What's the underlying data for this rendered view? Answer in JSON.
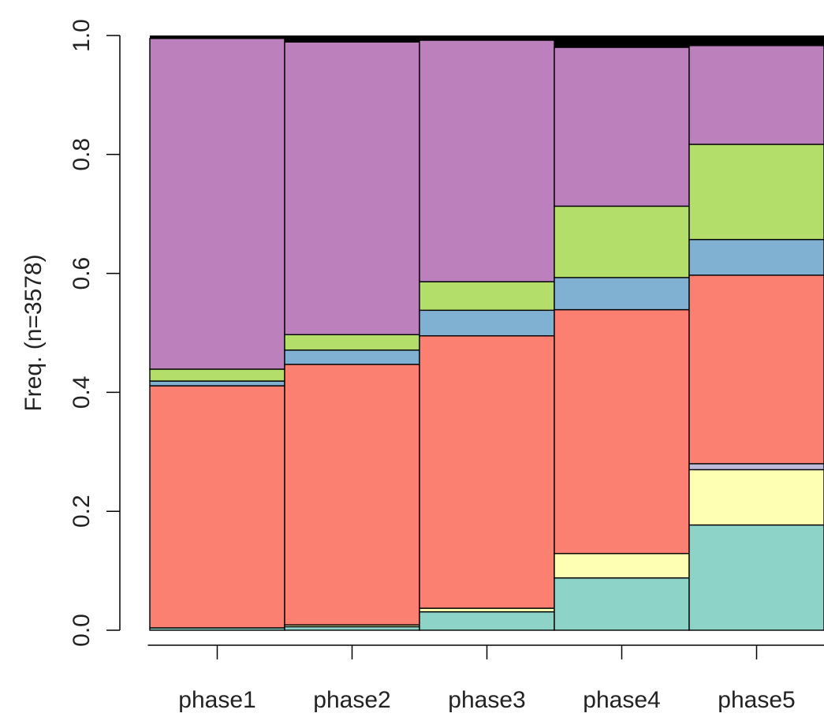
{
  "chart_data": {
    "type": "bar",
    "stacked": true,
    "normalized": true,
    "categories": [
      "phase1",
      "phase2",
      "phase3",
      "phase4",
      "phase5"
    ],
    "ylabel": "Freq. (n=3578)",
    "xlabel": "",
    "ylim": [
      0,
      1
    ],
    "yticks": [
      "0.0",
      "0.2",
      "0.4",
      "0.6",
      "0.8",
      "1.0"
    ],
    "grid": false,
    "series": [
      {
        "color": "#8DD3C7",
        "values": [
          0.004,
          0.006,
          0.031,
          0.088,
          0.177
        ]
      },
      {
        "color": "#FFFFB3",
        "values": [
          0.0,
          0.003,
          0.006,
          0.041,
          0.093
        ]
      },
      {
        "color": "#BEBADA",
        "values": [
          0.0,
          0.0,
          0.0,
          0.0,
          0.01
        ]
      },
      {
        "color": "#FB8072",
        "values": [
          0.407,
          0.438,
          0.458,
          0.41,
          0.317
        ]
      },
      {
        "color": "#80B1D3",
        "values": [
          0.008,
          0.024,
          0.043,
          0.054,
          0.06
        ]
      },
      {
        "color": "#B3DE69",
        "values": [
          0.02,
          0.026,
          0.048,
          0.12,
          0.16
        ]
      },
      {
        "color": "#BC80BD",
        "values": [
          0.556,
          0.492,
          0.406,
          0.267,
          0.166
        ]
      }
    ]
  }
}
